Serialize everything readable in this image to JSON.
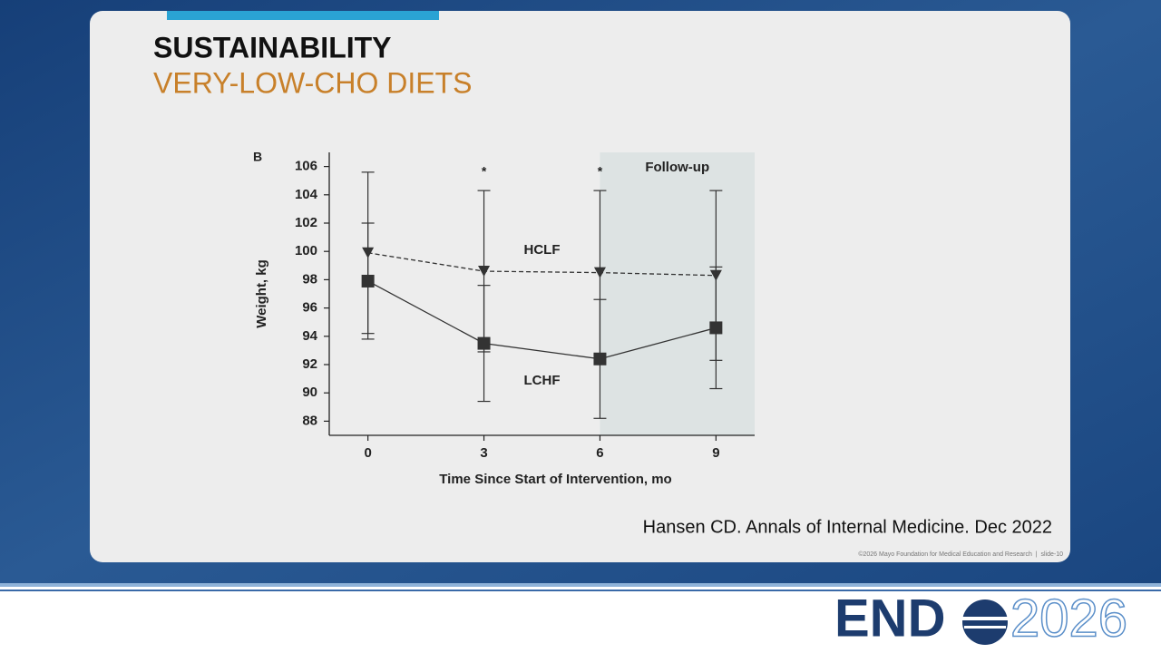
{
  "title": "SUSTAINABILITY",
  "subtitle": "VERY-LOW-CHO DIETS",
  "citation": "Hansen CD. Annals of Internal Medicine. Dec 2022",
  "footer": "©2026 Mayo Foundation for Medical Education and Research  |  slide-10",
  "logo": {
    "left": "END",
    "right": "2026"
  },
  "chart_data": {
    "type": "line",
    "panel_label": "B",
    "xlabel": "Time Since Start of Intervention, mo",
    "ylabel": "Weight, kg",
    "x": [
      0,
      3,
      6,
      9
    ],
    "xlim": [
      -1,
      10
    ],
    "xticks": [
      0,
      3,
      6,
      9
    ],
    "ylim": [
      87,
      107
    ],
    "yticks": [
      88,
      90,
      92,
      94,
      96,
      98,
      100,
      102,
      104,
      106
    ],
    "shaded_region": {
      "label": "Follow-up",
      "x": [
        6,
        10
      ],
      "color": "#dde3e3"
    },
    "annotations": [
      {
        "text": "*",
        "x": 3
      },
      {
        "text": "*",
        "x": 6
      }
    ],
    "series": [
      {
        "name": "HCLF",
        "color": "#333333",
        "dashed": true,
        "marker": "triangle-down",
        "values": [
          99.9,
          98.6,
          98.5,
          98.3
        ],
        "errors": [
          5.7,
          5.7,
          5.8,
          6.0
        ]
      },
      {
        "name": "LCHF",
        "color": "#333333",
        "dashed": false,
        "marker": "square",
        "values": [
          97.9,
          93.5,
          92.4,
          94.6
        ],
        "errors": [
          4.1,
          4.1,
          4.2,
          4.3
        ]
      }
    ]
  }
}
